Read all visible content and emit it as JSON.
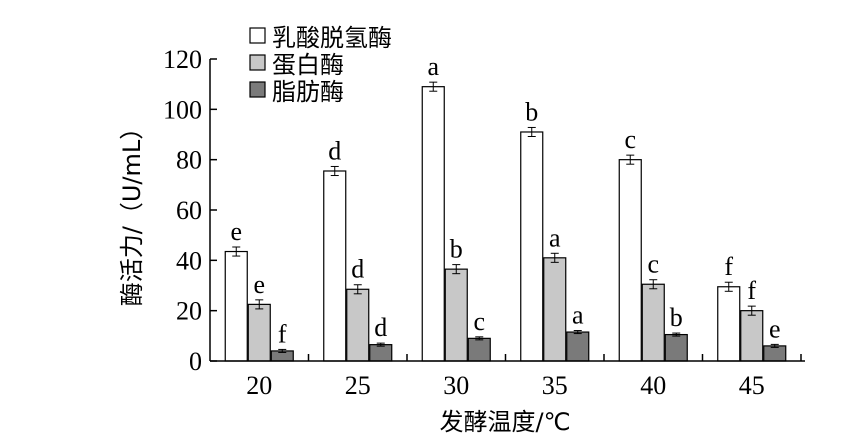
{
  "chart_data": {
    "type": "bar",
    "title": "",
    "xlabel": "发酵温度/℃",
    "ylabel": "酶活力/（U/mL）",
    "ylim": [
      0,
      120
    ],
    "yticks": [
      0,
      20,
      40,
      60,
      80,
      100,
      120
    ],
    "categories": [
      "20",
      "25",
      "30",
      "35",
      "40",
      "45"
    ],
    "legend_position": "top-left",
    "series": [
      {
        "name": "乳酸脱氢酶",
        "color": "#ffffff",
        "values": [
          43.5,
          75.5,
          109,
          91,
          80,
          29.5
        ],
        "errors": [
          1.8,
          1.8,
          1.8,
          1.8,
          1.8,
          1.8
        ],
        "letters": [
          "e",
          "d",
          "a",
          "b",
          "c",
          "f"
        ]
      },
      {
        "name": "蛋白酶",
        "color": "#c8c8c8",
        "values": [
          22.5,
          28.5,
          36.5,
          41,
          30.5,
          20
        ],
        "errors": [
          1.8,
          1.8,
          1.8,
          1.8,
          1.8,
          1.8
        ],
        "letters": [
          "e",
          "d",
          "b",
          "a",
          "c",
          "f"
        ]
      },
      {
        "name": "脂肪酶",
        "color": "#7a7a7a",
        "values": [
          4,
          6.5,
          9,
          11.5,
          10.5,
          6
        ],
        "errors": [
          0.6,
          0.6,
          0.6,
          0.6,
          0.6,
          0.6
        ],
        "letters": [
          "f",
          "d",
          "c",
          "a",
          "b",
          "e"
        ]
      }
    ]
  }
}
